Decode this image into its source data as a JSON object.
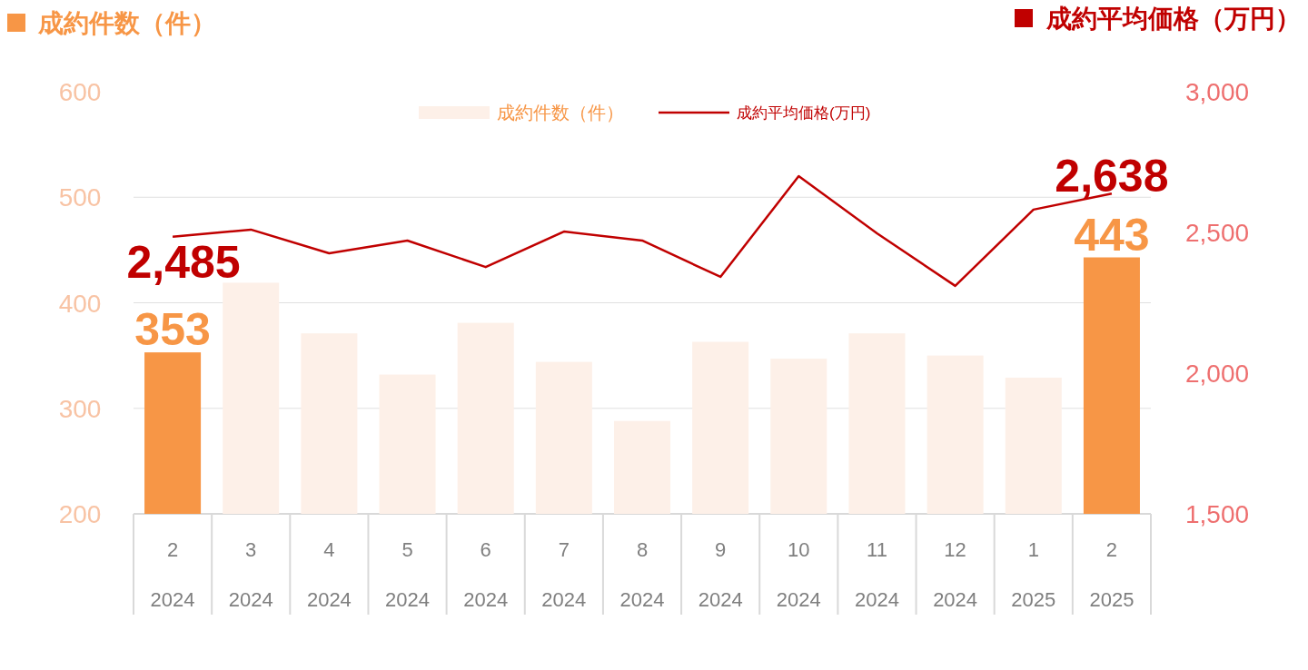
{
  "chart_data": {
    "type": "bar",
    "ylabel": "成約件数（件）",
    "y2label": "成約平均価格（万円）",
    "categories": [
      "2\n2024",
      "3\n2024",
      "4\n2024",
      "5\n2024",
      "6\n2024",
      "7\n2024",
      "8\n2024",
      "9\n2024",
      "10\n2024",
      "11\n2024",
      "12\n2024",
      "1\n2025",
      "2\n2025"
    ],
    "series": [
      {
        "name": "成約件数（件）",
        "color": "#fdf0e8",
        "colors": [
          "#f79646",
          "#fdf0e8",
          "#fdf0e8",
          "#fdf0e8",
          "#fdf0e8",
          "#fdf0e8",
          "#fdf0e8",
          "#fdf0e8",
          "#fdf0e8",
          "#fdf0e8",
          "#fdf0e8",
          "#fdf0e8",
          "#f79646"
        ],
        "values": [
          353,
          419,
          371,
          332,
          381,
          344,
          288,
          363,
          347,
          371,
          350,
          329,
          443
        ],
        "value_labels": [
          "353",
          null,
          null,
          null,
          null,
          null,
          null,
          null,
          null,
          null,
          null,
          null,
          "443"
        ]
      },
      {
        "name": "成約平均価格(万円)",
        "type": "line",
        "axis": "y2",
        "color": "#c00000",
        "values": [
          2485,
          2510,
          2426,
          2471,
          2377,
          2503,
          2471,
          2342,
          2700,
          2497,
          2310,
          2581,
          2638
        ],
        "value_labels": [
          "2,485",
          null,
          null,
          null,
          null,
          null,
          null,
          null,
          null,
          null,
          null,
          null,
          "2,638"
        ]
      }
    ],
    "ylim": [
      200,
      600
    ],
    "yticks": [
      200,
      300,
      400,
      500,
      600
    ],
    "y2lim": [
      1500,
      3000
    ],
    "y2ticks": [
      {
        "value": 1500,
        "label": "1,500"
      },
      {
        "value": 2000,
        "label": "2,000"
      },
      {
        "value": 2500,
        "label": "2,500"
      },
      {
        "value": 3000,
        "label": "3,000"
      }
    ],
    "grid": "y",
    "legend": "top"
  }
}
